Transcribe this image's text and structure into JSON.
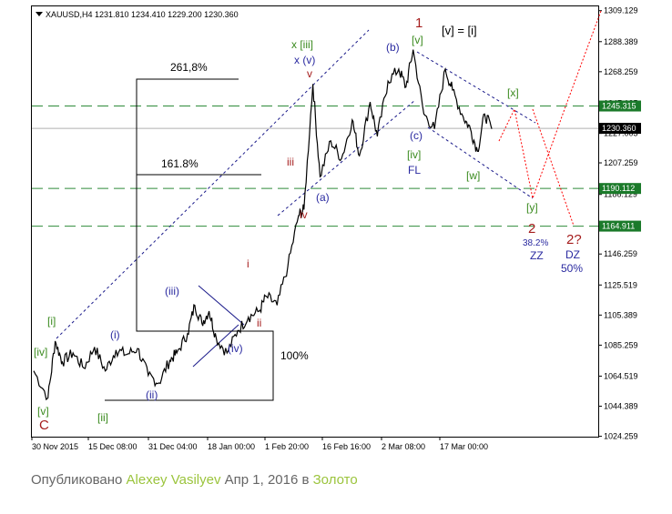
{
  "colors": {
    "background": "#ffffff",
    "price_line": "#000000",
    "level_line": "#2e8b3a",
    "level_tag_bg": "#1b7a2a",
    "current_tag_bg": "#000000",
    "forecast": "#ff0000",
    "channel": "#1a1a8a",
    "wave_red": "#a51d1d",
    "wave_green": "#3a8a1e",
    "wave_blue": "#2a2aa0",
    "caption_text": "#666666",
    "caption_link": "#9bc43c"
  },
  "chart_data": {
    "type": "line",
    "title": "XAUUSD,H4  1231.810 1234.410 1229.200 1230.360",
    "symbol": "XAUUSD",
    "timeframe": "H4",
    "ohlc_header": {
      "open": 1231.81,
      "high": 1234.41,
      "low": 1229.2,
      "close": 1230.36
    },
    "ylim": [
      1024.0,
      1312.0
    ],
    "grid": false,
    "y_ticks": [
      "1309.129",
      "1288.389",
      "1268.259",
      "1247.135",
      "1227.005",
      "1207.259",
      "1186.129",
      "1165.999",
      "1146.259",
      "1125.519",
      "1105.389",
      "1085.259",
      "1064.519",
      "1044.389",
      "1024.259"
    ],
    "x_ticks": [
      "30 Nov 2015",
      "15 Dec 08:00",
      "31 Dec 04:00",
      "18 Jan 00:00",
      "1 Feb 20:00",
      "16 Feb 16:00",
      "2 Mar 08:00",
      "17 Mar 00:00"
    ],
    "x_range_bars": [
      0,
      260
    ],
    "price_series": {
      "name": "XAUUSD H4",
      "x": [
        0,
        8,
        12,
        16,
        22,
        28,
        34,
        40,
        46,
        52,
        58,
        64,
        70,
        76,
        80,
        86,
        90,
        94,
        98,
        102,
        108,
        114,
        120,
        126,
        130,
        136,
        142,
        148,
        151,
        156,
        160,
        166,
        172,
        178,
        182,
        188,
        192,
        198,
        204,
        208,
        212,
        218,
        224,
        230,
        234,
        240,
        244,
        248,
        252,
        256
      ],
      "y": [
        1068,
        1050,
        1088,
        1074,
        1080,
        1070,
        1084,
        1068,
        1082,
        1079,
        1083,
        1065,
        1060,
        1075,
        1080,
        1093,
        1112,
        1100,
        1108,
        1090,
        1080,
        1095,
        1104,
        1108,
        1118,
        1112,
        1138,
        1172,
        1176,
        1260,
        1198,
        1222,
        1210,
        1236,
        1212,
        1248,
        1225,
        1262,
        1270,
        1258,
        1283,
        1240,
        1230,
        1270,
        1256,
        1238,
        1230,
        1215,
        1240,
        1230
      ]
    },
    "levels": [
      {
        "value": 1245.315,
        "label": "1245.315"
      },
      {
        "value": 1190.112,
        "label": "1190.112"
      },
      {
        "value": 1164.911,
        "label": "1164.911"
      }
    ],
    "current_price": {
      "value": 1230.36,
      "label": "1230.360"
    },
    "fibonacci": [
      "261,8%",
      "161.8%",
      "100%",
      "38.2%",
      "50%"
    ],
    "wave_labels": [
      "C",
      "[v]",
      "[iv]",
      "[ii]",
      "[i]",
      "(i)",
      "(ii)",
      "(iii)",
      "(iv)",
      "i",
      "ii",
      "iii",
      "iv",
      "v",
      "x [iii]",
      "x (v)",
      "(a)",
      "(b)",
      "(c)",
      "[iv]",
      "FL",
      "[v]",
      "1",
      "[v] = [i]",
      "[w]",
      "[x]",
      "[y]",
      "2",
      "ZZ",
      "2?",
      "DZ"
    ]
  },
  "caption": {
    "prefix": "Опубликовано ",
    "author": "Alexey Vasilyev",
    "middle": " Апр 1, 2016 в ",
    "category": "Золото"
  }
}
